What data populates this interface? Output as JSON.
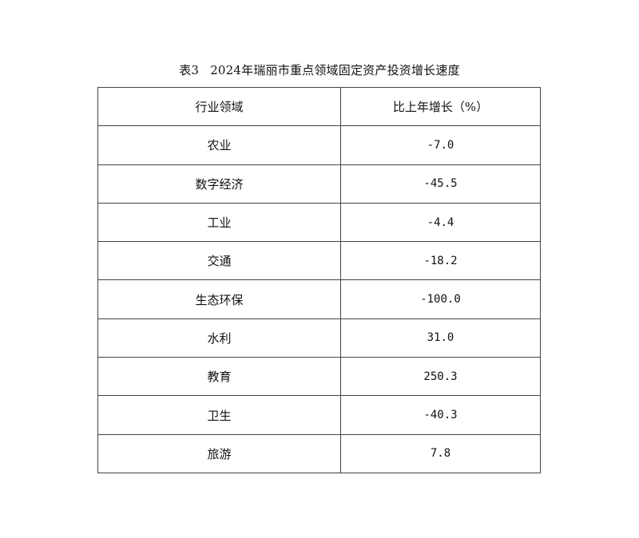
{
  "title": {
    "label": "表3",
    "text": "2024年瑞丽市重点领域固定资产投资增长速度"
  },
  "table": {
    "headers": [
      "行业领域",
      "比上年增长（%）"
    ],
    "rows": [
      [
        "农业",
        "-7.0"
      ],
      [
        "数字经济",
        "-45.5"
      ],
      [
        "工业",
        "-4.4"
      ],
      [
        "交通",
        "-18.2"
      ],
      [
        "生态环保",
        "-100.0"
      ],
      [
        "水利",
        "31.0"
      ],
      [
        "教育",
        "250.3"
      ],
      [
        "卫生",
        "-40.3"
      ],
      [
        "旅游",
        "7.8"
      ]
    ]
  }
}
